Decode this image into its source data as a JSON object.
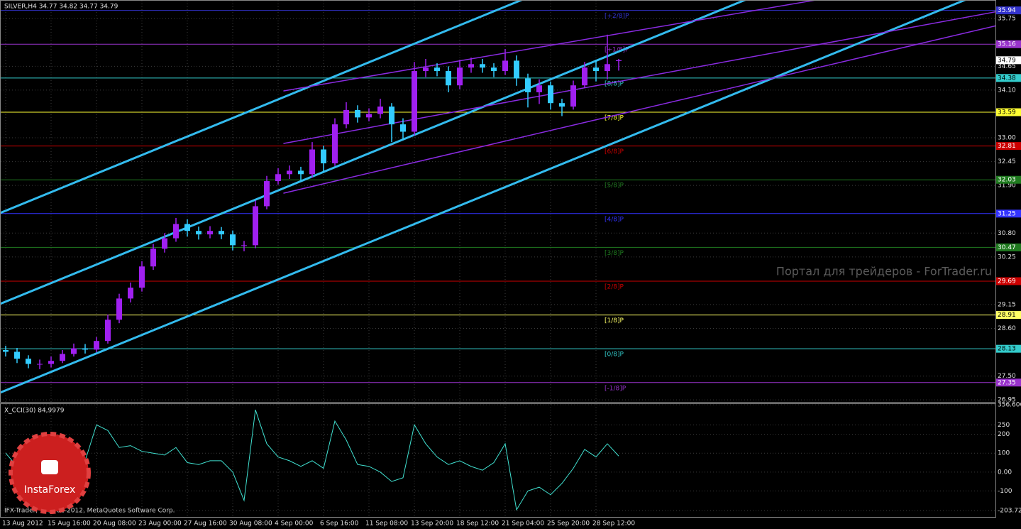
{
  "chart_data": [
    {
      "type": "candlestick",
      "title": "SILVER,H4 34.77 34.82 34.77 34.79",
      "categories": [
        "13 Aug 2012",
        null,
        null,
        null,
        "15 Aug 16:00",
        null,
        null,
        null,
        "20 Aug 08:00",
        null,
        null,
        null,
        "23 Aug 00:00",
        null,
        null,
        null,
        "27 Aug 16:00",
        null,
        null,
        null,
        "30 Aug 08:00",
        null,
        null,
        null,
        "4 Sep 00:00",
        null,
        null,
        null,
        "6 Sep 16:00",
        null,
        null,
        null,
        "11 Sep 08:00",
        null,
        null,
        null,
        "13 Sep 20:00",
        null,
        null,
        null,
        "18 Sep 12:00",
        null,
        null,
        null,
        "21 Sep 04:00",
        null,
        null,
        null,
        "25 Sep 20:00",
        null,
        null,
        null,
        "28 Sep 12:00",
        null,
        null
      ],
      "open": [
        28.1,
        28.06,
        27.9,
        27.78,
        27.78,
        27.85,
        28.01,
        28.14,
        28.11,
        28.31,
        28.8,
        29.29,
        29.54,
        30.03,
        30.44,
        30.68,
        31.01,
        30.85,
        30.77,
        30.85,
        30.77,
        30.52,
        30.52,
        31.42,
        32.0,
        32.16,
        32.24,
        32.16,
        32.73,
        32.41,
        33.31,
        33.64,
        33.47,
        33.55,
        33.72,
        33.31,
        33.14,
        34.54,
        34.62,
        34.54,
        34.21,
        34.62,
        34.7,
        34.62,
        34.54,
        34.78,
        34.37,
        34.05,
        34.21,
        33.8,
        33.72,
        34.21,
        34.62,
        34.54,
        34.77
      ],
      "high": [
        28.2,
        28.15,
        27.98,
        27.88,
        27.95,
        28.1,
        28.25,
        28.24,
        28.4,
        28.92,
        29.4,
        29.66,
        30.15,
        30.55,
        30.8,
        31.15,
        31.12,
        30.95,
        30.96,
        30.94,
        30.86,
        30.62,
        31.55,
        32.12,
        32.3,
        32.36,
        32.33,
        32.9,
        32.82,
        33.45,
        33.82,
        33.75,
        33.68,
        33.9,
        33.8,
        33.45,
        34.75,
        34.82,
        34.72,
        34.65,
        34.8,
        34.85,
        34.82,
        34.72,
        35.05,
        34.9,
        34.48,
        34.35,
        34.3,
        33.9,
        34.32,
        34.75,
        34.8,
        35.38,
        34.82
      ],
      "low": [
        27.95,
        27.8,
        27.68,
        27.66,
        27.7,
        27.8,
        27.95,
        28.02,
        28.05,
        28.25,
        28.72,
        29.2,
        29.45,
        29.95,
        30.35,
        30.6,
        30.72,
        30.65,
        30.68,
        30.66,
        30.4,
        30.38,
        30.45,
        31.35,
        31.92,
        32.05,
        32.02,
        32.08,
        32.2,
        32.35,
        33.22,
        33.35,
        33.38,
        33.45,
        32.9,
        32.95,
        33.05,
        34.4,
        34.42,
        34.05,
        34.12,
        34.5,
        34.5,
        34.4,
        34.45,
        34.2,
        33.7,
        33.78,
        33.65,
        33.5,
        33.65,
        34.15,
        34.3,
        34.35,
        34.55
      ],
      "close": [
        28.06,
        27.9,
        27.78,
        27.78,
        27.85,
        28.01,
        28.14,
        28.11,
        28.31,
        28.8,
        29.29,
        29.54,
        30.03,
        30.44,
        30.68,
        31.01,
        30.85,
        30.77,
        30.85,
        30.77,
        30.52,
        30.52,
        31.42,
        32.0,
        32.16,
        32.24,
        32.16,
        32.73,
        32.41,
        33.31,
        33.64,
        33.47,
        33.55,
        33.72,
        33.31,
        33.14,
        34.54,
        34.62,
        34.54,
        34.21,
        34.62,
        34.7,
        34.62,
        34.54,
        34.78,
        34.37,
        34.05,
        34.21,
        33.8,
        33.72,
        34.21,
        34.62,
        34.54,
        34.7,
        34.79
      ],
      "up_color": "#a020f0",
      "down_color": "#33ccff",
      "ylim": [
        26.92,
        36.18
      ],
      "yticks": [
        26.95,
        {
          "value": 27.5,
          "label": "27.50"
        },
        {
          "value": 28.6,
          "label": "28.60"
        },
        29.15,
        30.25,
        {
          "value": 30.8,
          "label": "30.80"
        },
        {
          "value": 31.9,
          "label": "31.90"
        },
        32.45,
        {
          "value": 33,
          "label": "33.00"
        },
        {
          "value": 34.1,
          "label": "34.10"
        },
        34.65,
        35.75
      ],
      "grid": true,
      "last_price": 34.79,
      "levels": [
        {
          "name": "[+2/8]P",
          "value": 35.94,
          "color": "#3333cc"
        },
        {
          "name": "[+1/8]P",
          "value": 35.16,
          "color": "#9933cc"
        },
        {
          "name": "[8/8]P",
          "value": 34.38,
          "color": "#33cccc"
        },
        {
          "name": "[7/8]P",
          "value": 33.59,
          "color": "#ffff33"
        },
        {
          "name": "[6/8]P",
          "value": 32.81,
          "color": "#cc0000"
        },
        {
          "name": "[5/8]P",
          "value": 32.03,
          "color": "#1f7a1f"
        },
        {
          "name": "[4/8]P",
          "value": 31.25,
          "color": "#3333ff"
        },
        {
          "name": "[3/8]P",
          "value": 30.47,
          "color": "#1f7a1f"
        },
        {
          "name": "[2/8]P",
          "value": 29.69,
          "color": "#cc0000"
        },
        {
          "name": "[1/8]P",
          "value": 28.91,
          "color": "#ffff66"
        },
        {
          "name": "[0/8]P",
          "value": 28.13,
          "color": "#33cccc"
        },
        {
          "name": "[-1/8]P",
          "value": 27.35,
          "color": "#9933cc"
        }
      ]
    },
    {
      "type": "line",
      "title": "X_CCI(30) 84,9979",
      "values": [
        100,
        30,
        -50,
        -60,
        -30,
        50,
        120,
        60,
        250,
        220,
        130,
        140,
        110,
        100,
        90,
        130,
        50,
        40,
        60,
        60,
        0,
        -150,
        330,
        150,
        80,
        60,
        30,
        60,
        20,
        270,
        170,
        40,
        30,
        0,
        -50,
        -30,
        250,
        150,
        80,
        40,
        60,
        30,
        10,
        50,
        150,
        -200,
        -100,
        -80,
        -120,
        -60,
        20,
        120,
        80,
        150,
        85
      ],
      "color": "#40e0d0",
      "ylim": [
        -203.723,
        356.606
      ],
      "yticks": [
        356.606,
        250,
        200,
        100,
        {
          "value": 0,
          "label": "0.00"
        },
        -100,
        -203.723
      ],
      "grid": true
    }
  ],
  "watermark": "Портал для трейдеров - ForTrader.ru",
  "copyright": "IFX-Trader, © 2001-2012, MetaQuotes Software Corp.",
  "logo": "InstaForex"
}
